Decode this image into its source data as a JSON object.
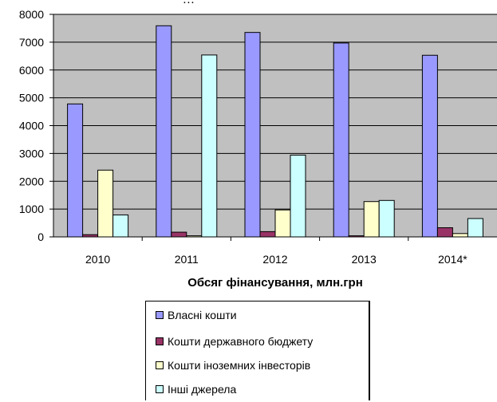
{
  "caption_fragment": "…",
  "chart_data": {
    "type": "bar",
    "categories": [
      "2010",
      "2011",
      "2012",
      "2013",
      "2014*"
    ],
    "xlabel": "Обсяг фінансування, млн.грн",
    "ylabel": "",
    "ylim": [
      0,
      8000
    ],
    "yticks": [
      0,
      1000,
      2000,
      3000,
      4000,
      5000,
      6000,
      7000,
      8000
    ],
    "grid": true,
    "legend_position": "bottom",
    "plot_background": "#c0c0c0",
    "series": [
      {
        "name": "Власні кошти",
        "color": "#9999ff",
        "values": [
          4780,
          7590,
          7350,
          6970,
          6530
        ]
      },
      {
        "name": "Кошти державного бюджету",
        "color": "#993366",
        "values": [
          80,
          170,
          190,
          40,
          330
        ]
      },
      {
        "name": "Кошти іноземних інвесторів",
        "color": "#ffffcc",
        "values": [
          2400,
          40,
          970,
          1270,
          120
        ]
      },
      {
        "name": "Інші джерела",
        "color": "#ccffff",
        "values": [
          790,
          6540,
          2940,
          1310,
          660
        ]
      }
    ]
  }
}
